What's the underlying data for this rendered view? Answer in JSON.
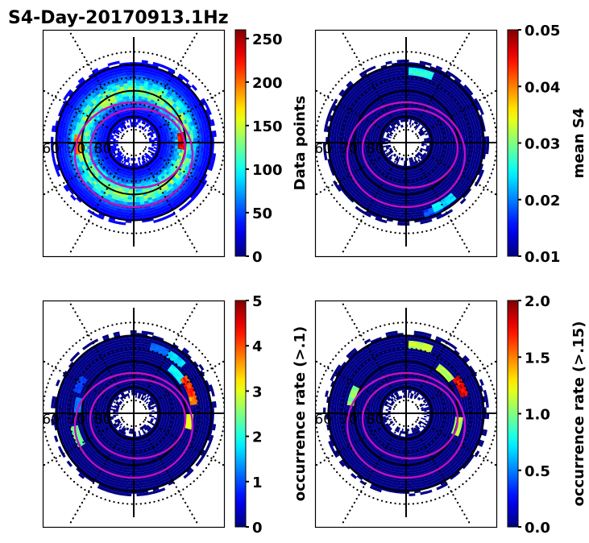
{
  "figure_title": "S4-Day-20170913.1Hz",
  "chart_data": [
    {
      "type": "heatmap",
      "projection": "polar (magnetic latitude / MLT)",
      "panel": "top-left",
      "colormap": "jet",
      "colorbar_label": "Data points",
      "range": [
        0,
        260
      ],
      "colorbar_ticks": [
        "0",
        "50",
        "100",
        "150",
        "200",
        "250"
      ],
      "colorbar_tick_values": [
        0,
        50,
        100,
        150,
        200,
        250
      ],
      "latitude_rings": [
        60,
        70,
        80
      ],
      "ring_labels": [
        "60",
        "70",
        "80"
      ],
      "dotted_rings": [
        55,
        65,
        75,
        85
      ],
      "radial_grid_step_deg": 30,
      "data_extent_lat": [
        58,
        84
      ],
      "background_level": 0.22,
      "hotspots": [
        {
          "mlt_deg": 180,
          "lat": 68,
          "value": 210
        },
        {
          "mlt_deg": 0,
          "lat": 71,
          "value": 250
        },
        {
          "mlt_deg": 120,
          "lat": 71,
          "value": 150
        },
        {
          "mlt_deg": 60,
          "lat": 70,
          "value": 140
        },
        {
          "mlt_deg": 240,
          "lat": 70,
          "value": 130
        },
        {
          "mlt_deg": 300,
          "lat": 70,
          "value": 120
        }
      ],
      "ovals": 2
    },
    {
      "type": "heatmap",
      "projection": "polar (magnetic latitude / MLT)",
      "panel": "top-right",
      "colormap": "jet",
      "colorbar_label": "mean S4",
      "range": [
        0.01,
        0.05
      ],
      "colorbar_ticks": [
        "0.01",
        "0.02",
        "0.03",
        "0.04",
        "0.05"
      ],
      "colorbar_tick_values": [
        0.01,
        0.02,
        0.03,
        0.04,
        0.05
      ],
      "latitude_rings": [
        60,
        70,
        80
      ],
      "ring_labels": [
        "60",
        "70",
        "80"
      ],
      "dotted_rings": [
        55,
        65,
        75,
        85
      ],
      "radial_grid_step_deg": 30,
      "data_extent_lat": [
        58,
        84
      ],
      "background_level": 0.0,
      "hotspots": [
        {
          "mlt_deg": 75,
          "lat": 62,
          "value": 0.028
        },
        {
          "mlt_deg": 300,
          "lat": 62,
          "value": 0.026
        },
        {
          "mlt_deg": 290,
          "lat": 61,
          "value": 0.019
        }
      ],
      "ovals": 2
    },
    {
      "type": "heatmap",
      "projection": "polar (magnetic latitude / MLT)",
      "panel": "bottom-left",
      "colormap": "jet",
      "colorbar_label": "occurrence rate (>.1)",
      "range": [
        0,
        5
      ],
      "colorbar_ticks": [
        "0",
        "1",
        "2",
        "3",
        "4",
        "5"
      ],
      "colorbar_tick_values": [
        0,
        1,
        2,
        3,
        4,
        5
      ],
      "latitude_rings": [
        60,
        70,
        80
      ],
      "ring_labels": [
        "60",
        "70",
        "80"
      ],
      "dotted_rings": [
        55,
        65,
        75,
        85
      ],
      "radial_grid_step_deg": 30,
      "data_extent_lat": [
        58,
        84
      ],
      "background_level": 0.0,
      "hotspots": [
        {
          "mlt_deg": 65,
          "lat": 63,
          "value": 1.2
        },
        {
          "mlt_deg": 50,
          "lat": 63,
          "value": 1.8
        },
        {
          "mlt_deg": 40,
          "lat": 67,
          "value": 2.0
        },
        {
          "mlt_deg": 25,
          "lat": 66,
          "value": 4.5
        },
        {
          "mlt_deg": 15,
          "lat": 66,
          "value": 4.0
        },
        {
          "mlt_deg": 350,
          "lat": 68,
          "value": 3.2
        },
        {
          "mlt_deg": 150,
          "lat": 66,
          "value": 1.0
        },
        {
          "mlt_deg": 170,
          "lat": 68,
          "value": 1.3
        },
        {
          "mlt_deg": 200,
          "lat": 66,
          "value": 2.6
        }
      ],
      "ovals": 2
    },
    {
      "type": "heatmap",
      "projection": "polar (magnetic latitude / MLT)",
      "panel": "bottom-right",
      "colormap": "jet",
      "colorbar_label": "occurrence rate (>.15)",
      "range": [
        0,
        2.0
      ],
      "colorbar_ticks": [
        "0.0",
        "0.5",
        "1.0",
        "1.5",
        "2.0"
      ],
      "colorbar_tick_values": [
        0,
        0.5,
        1.0,
        1.5,
        2.0
      ],
      "latitude_rings": [
        60,
        70,
        80
      ],
      "ring_labels": [
        "60",
        "70",
        "80"
      ],
      "dotted_rings": [
        55,
        65,
        75,
        85
      ],
      "radial_grid_step_deg": 30,
      "data_extent_lat": [
        58,
        84
      ],
      "background_level": 0.0,
      "hotspots": [
        {
          "mlt_deg": 75,
          "lat": 63,
          "value": 1.2
        },
        {
          "mlt_deg": 45,
          "lat": 68,
          "value": 1.2
        },
        {
          "mlt_deg": 25,
          "lat": 66,
          "value": 1.9
        },
        {
          "mlt_deg": 160,
          "lat": 68,
          "value": 1.1
        },
        {
          "mlt_deg": 345,
          "lat": 69,
          "value": 1.2
        }
      ],
      "ovals": 2
    }
  ]
}
